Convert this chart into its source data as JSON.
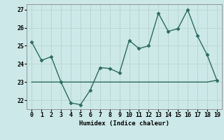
{
  "x": [
    0,
    1,
    2,
    3,
    4,
    5,
    6,
    7,
    8,
    9,
    10,
    11,
    12,
    13,
    14,
    15,
    16,
    17,
    18,
    19
  ],
  "y_main": [
    25.2,
    24.2,
    24.4,
    23.0,
    21.85,
    21.75,
    22.55,
    23.8,
    23.75,
    23.5,
    25.3,
    24.85,
    25.0,
    26.8,
    25.8,
    25.95,
    27.0,
    25.55,
    24.5,
    23.1
  ],
  "y_flat": [
    23.0,
    23.0,
    23.0,
    23.0,
    23.0,
    23.0,
    23.0,
    23.0,
    23.0,
    23.0,
    23.0,
    23.0,
    23.0,
    23.0,
    23.0,
    23.0,
    23.0,
    23.0,
    23.0,
    23.1
  ],
  "xlabel": "Humidex (Indice chaleur)",
  "ylim": [
    21.5,
    27.3
  ],
  "yticks": [
    22,
    23,
    24,
    25,
    26,
    27
  ],
  "xticks": [
    0,
    1,
    2,
    3,
    4,
    5,
    6,
    7,
    8,
    9,
    10,
    11,
    12,
    13,
    14,
    15,
    16,
    17,
    18,
    19
  ],
  "line_color": "#2d6b5e",
  "bg_color": "#cce8e8",
  "grid_color": "#aad4d4",
  "marker": "D",
  "marker_size": 2.5,
  "line_width": 1.0
}
